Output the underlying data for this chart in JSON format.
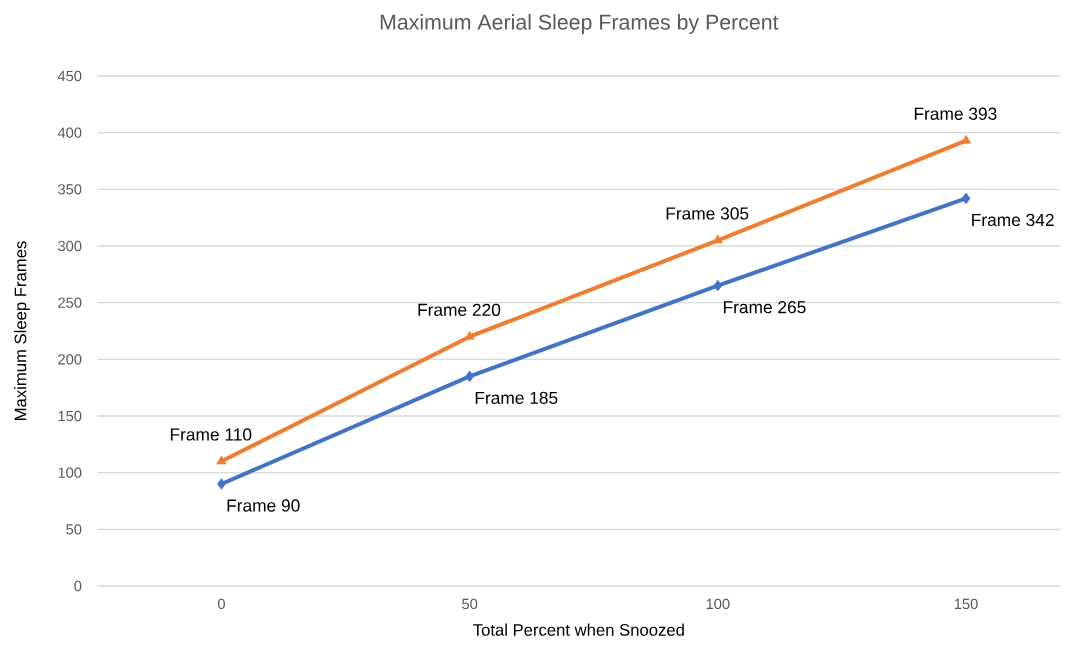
{
  "chart_data": {
    "type": "line",
    "title": "Maximum Aerial Sleep Frames by Percent",
    "xlabel": "Total Percent when Snoozed",
    "ylabel": "Maximum Sleep Frames",
    "categories": [
      "0",
      "50",
      "100",
      "150"
    ],
    "series": [
      {
        "color": "#4472c4",
        "marker": "diamond",
        "values": [
          90,
          185,
          265,
          342
        ],
        "value_labels": [
          "Frame 90",
          "Frame 185",
          "Frame 265",
          "Frame 342"
        ]
      },
      {
        "color": "#ed7d31",
        "marker": "triangle",
        "values": [
          110,
          220,
          305,
          393
        ],
        "value_labels": [
          "Frame 110",
          "Frame 220",
          "Frame 305",
          "Frame 393"
        ]
      }
    ],
    "ylim": [
      0,
      450
    ],
    "yticks": [
      0,
      50,
      100,
      150,
      200,
      250,
      300,
      350,
      400,
      450
    ],
    "grid": "y",
    "line_style": "solid"
  }
}
